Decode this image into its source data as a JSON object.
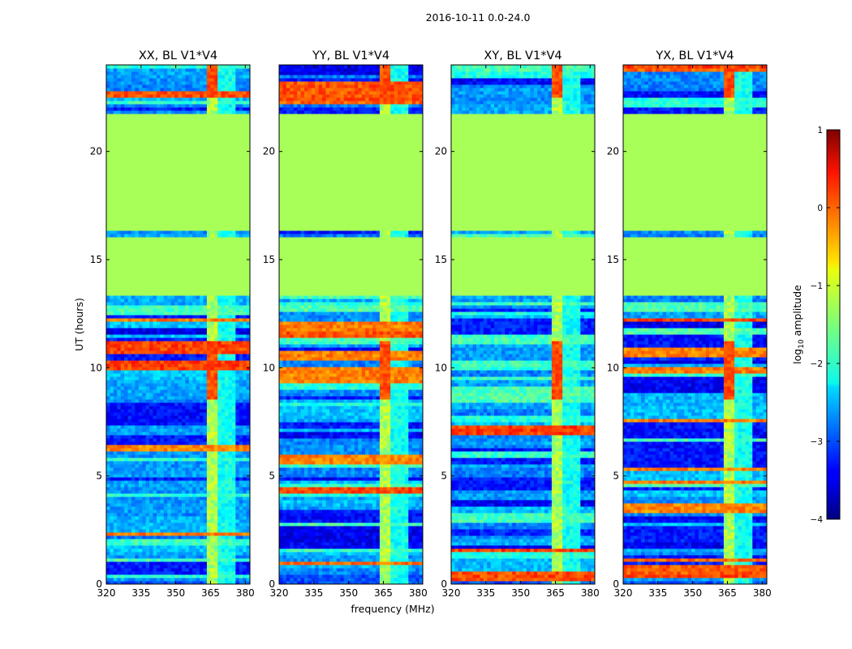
{
  "chart_data": {
    "type": "heatmap",
    "suptitle": "2016-10-11 0.0-24.0",
    "panels": [
      {
        "title": "XX, BL V1*V4"
      },
      {
        "title": "YY, BL V1*V4"
      },
      {
        "title": "XY, BL V1*V4"
      },
      {
        "title": "YX, BL V1*V4"
      }
    ],
    "xlabel": "frequency (MHz)",
    "ylabel": "UT (hours)",
    "xlim": [
      320,
      382
    ],
    "ylim": [
      0,
      24
    ],
    "xticks": [
      320,
      335,
      350,
      365,
      380
    ],
    "xtick_labels": [
      "320",
      "335",
      "350",
      "365",
      "380"
    ],
    "yticks": [
      0,
      5,
      10,
      15,
      20
    ],
    "ytick_labels": [
      "0",
      "5",
      "10",
      "15",
      "20"
    ],
    "colorbar": {
      "label": "log10 amplitude",
      "label_main": "log",
      "label_sub": "10",
      "label_rest": " amplitude",
      "range": [
        -4,
        1
      ],
      "ticks": [
        1,
        0,
        -1,
        -2,
        -3,
        -4
      ],
      "tick_labels": [
        "1",
        "0",
        "−1",
        "−2",
        "−3",
        "−4"
      ],
      "colormap": "jet"
    },
    "flagged_blocks_hours": [
      [
        13.3,
        16.1
      ],
      [
        16.4,
        21.8
      ]
    ],
    "flagged_value": -1.3,
    "bright_band_MHz": [
      363.5,
      368.0
    ],
    "bright_rfi_hours": [
      [
        8.5,
        11.3
      ],
      [
        22.5,
        24.0
      ]
    ]
  }
}
